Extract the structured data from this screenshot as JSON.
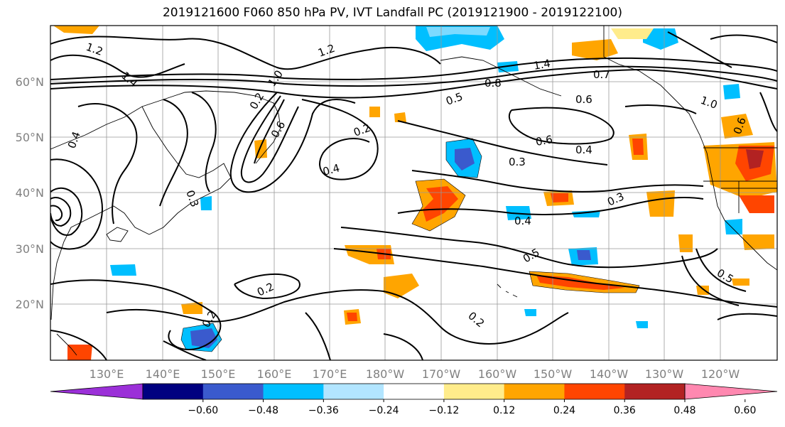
{
  "title": "2019121600 F060 850 hPa PV, IVT Landfall PC (2019121900 - 2019122100)",
  "map": {
    "lon_labels": [
      "130°E",
      "140°E",
      "150°E",
      "160°E",
      "170°E",
      "180°W",
      "170°W",
      "160°W",
      "150°W",
      "140°W",
      "130°W",
      "120°W"
    ],
    "lat_labels": [
      "60°N",
      "50°N",
      "40°N",
      "30°N",
      "20°N"
    ]
  },
  "colorbar": {
    "colors": [
      "#9b30d8",
      "#000080",
      "#3a5acd",
      "#00bfff",
      "#b2e5ff",
      "#ffffff",
      "#ffec8b",
      "#ffa500",
      "#ff4500",
      "#b22222",
      "#ff88b0"
    ],
    "tick_labels": [
      "−0.60",
      "−0.48",
      "−0.36",
      "−0.24",
      "−0.12",
      "0.12",
      "0.24",
      "0.36",
      "0.48",
      "0.60"
    ]
  },
  "contour_labels": [
    "1.2",
    "1.4",
    "1.0",
    "0.6",
    "0.4",
    "0.2",
    "0.5",
    "0.3",
    "0.8",
    "0.7",
    "0.2",
    "0.4",
    "0.6",
    "0.4",
    "0.3",
    "0.4",
    "0.5",
    "0.3",
    "0.2",
    "0.2",
    "0.2",
    "0.5",
    "0.6",
    "1.4",
    "1.2",
    "1.0",
    "0.6"
  ]
}
